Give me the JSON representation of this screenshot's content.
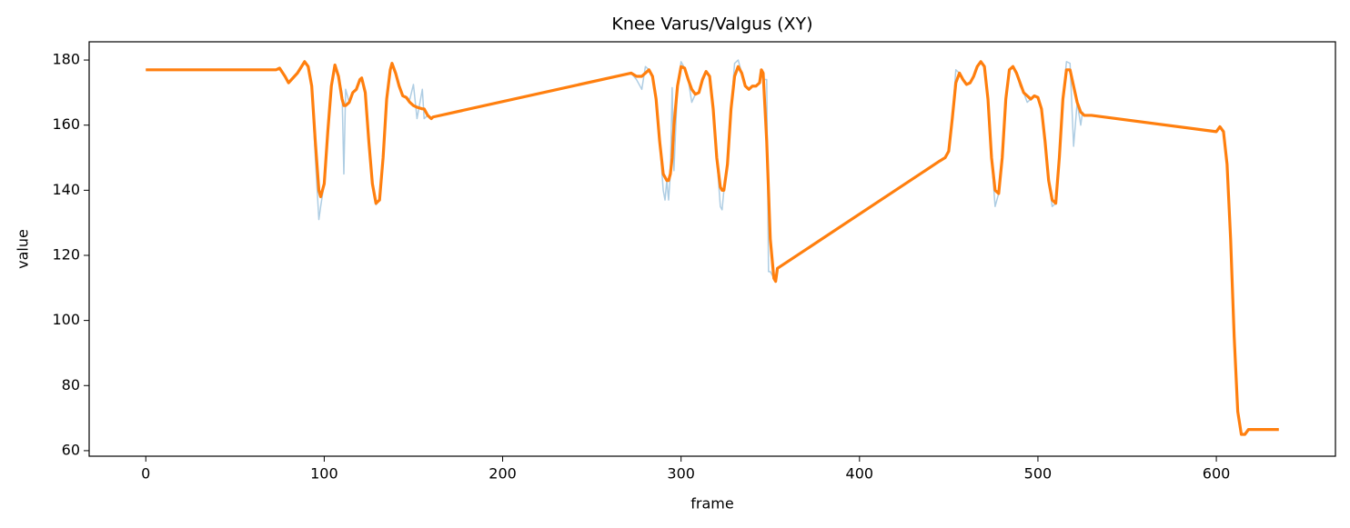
{
  "chart_data": {
    "type": "line",
    "title": "Knee Varus/Valgus (XY)",
    "x_label": "frame",
    "y_label": "value",
    "x": [
      0,
      73,
      75,
      78,
      80,
      85,
      89,
      91,
      93,
      95,
      97,
      98,
      100,
      102,
      104,
      106,
      108,
      110,
      111,
      112,
      114,
      116,
      118,
      120,
      121,
      123,
      125,
      127,
      129,
      131,
      133,
      135,
      137,
      138,
      140,
      142,
      144,
      146,
      148,
      150,
      152,
      155,
      156,
      158,
      160,
      161,
      272,
      275,
      278,
      280,
      282,
      284,
      286,
      288,
      290,
      291,
      292,
      293,
      294,
      295,
      296,
      298,
      300,
      302,
      304,
      306,
      308,
      310,
      312,
      314,
      316,
      318,
      320,
      322,
      323,
      324,
      326,
      328,
      330,
      332,
      334,
      336,
      338,
      340,
      342,
      344,
      345,
      346,
      348,
      349,
      350,
      352,
      353,
      354,
      445,
      448,
      450,
      452,
      454,
      456,
      458,
      460,
      462,
      464,
      466,
      468,
      470,
      472,
      474,
      476,
      478,
      480,
      482,
      484,
      486,
      488,
      490,
      492,
      494,
      496,
      498,
      500,
      502,
      504,
      506,
      508,
      510,
      512,
      514,
      516,
      518,
      520,
      522,
      524,
      525,
      526,
      528,
      530,
      600,
      602,
      604,
      606,
      608,
      610,
      612,
      614,
      616,
      618,
      635
    ],
    "series": [
      {
        "color": "#aecde3",
        "values": [
          177,
          177,
          177.5,
          175,
          173,
          176,
          179.8,
          178,
          172,
          150,
          131,
          135,
          142,
          158,
          172,
          178.5,
          175,
          170,
          145,
          171,
          167,
          170,
          171,
          174,
          174.5,
          170,
          155,
          142,
          135.5,
          137,
          150,
          168,
          177,
          179,
          176,
          172,
          169,
          168.5,
          168,
          172.5,
          162,
          171,
          162,
          163,
          162,
          162.5,
          176,
          174,
          171,
          178,
          177,
          175,
          168,
          155,
          140,
          137,
          143,
          137,
          145,
          171.5,
          146,
          172,
          179.5,
          177.5,
          174,
          167,
          169.5,
          170,
          174,
          176.5,
          175,
          165,
          150,
          135,
          134,
          140,
          148,
          165,
          179,
          180,
          176,
          172,
          171,
          172,
          172,
          173,
          177,
          174,
          174,
          115,
          115,
          113,
          112,
          116,
          149,
          150,
          152,
          162,
          177,
          176,
          174,
          172.5,
          173,
          175,
          178,
          179.5,
          178,
          168,
          150,
          135,
          139,
          150,
          168,
          177,
          178,
          176,
          172,
          170,
          167,
          168,
          169,
          168.5,
          165,
          155,
          143,
          135,
          136,
          150,
          168,
          179.5,
          179,
          153.5,
          167,
          160,
          164,
          163,
          163,
          163,
          158,
          159.5,
          158,
          148,
          125,
          95,
          72,
          65,
          65,
          66.5,
          66.5
        ]
      },
      {
        "color": "#ff7f0e",
        "values": [
          177,
          177,
          177.5,
          175,
          173,
          176,
          179.5,
          178,
          172,
          155,
          140,
          138,
          142,
          158,
          172,
          178.5,
          175,
          168,
          166,
          166,
          167,
          170,
          171,
          174,
          174.5,
          170,
          155,
          142,
          136,
          137,
          150,
          168,
          177,
          179,
          176,
          172,
          169,
          168.5,
          167,
          166,
          165.5,
          165,
          165,
          163,
          162,
          162.5,
          176,
          175,
          175,
          176,
          177,
          175,
          168,
          155,
          145,
          144,
          143,
          143,
          145,
          150,
          160,
          172,
          178,
          177.5,
          174,
          171,
          169.5,
          170,
          174,
          176.5,
          175,
          165,
          150,
          141,
          140,
          140,
          148,
          165,
          175,
          178,
          176,
          172,
          171,
          172,
          172,
          173,
          177,
          176,
          155,
          140,
          125,
          113,
          112,
          116,
          149,
          150,
          152,
          162,
          173,
          176,
          174,
          172.5,
          173,
          175,
          178,
          179.5,
          178,
          168,
          150,
          140,
          139,
          150,
          168,
          177,
          178,
          176,
          173,
          170,
          169,
          168,
          169,
          168.5,
          165,
          155,
          143,
          137,
          136,
          150,
          168,
          177,
          177,
          172,
          167,
          164,
          163.5,
          163,
          163,
          163,
          158,
          159.5,
          158,
          148,
          125,
          95,
          72,
          65,
          65,
          66.5,
          66.5
        ]
      }
    ],
    "xlim": [
      -31.75,
      666.75
    ],
    "xticks": [
      0,
      100,
      200,
      300,
      400,
      500,
      600
    ],
    "ylim": [
      58.3,
      185.6
    ],
    "yticks": [
      60,
      80,
      100,
      120,
      140,
      160,
      180
    ]
  }
}
